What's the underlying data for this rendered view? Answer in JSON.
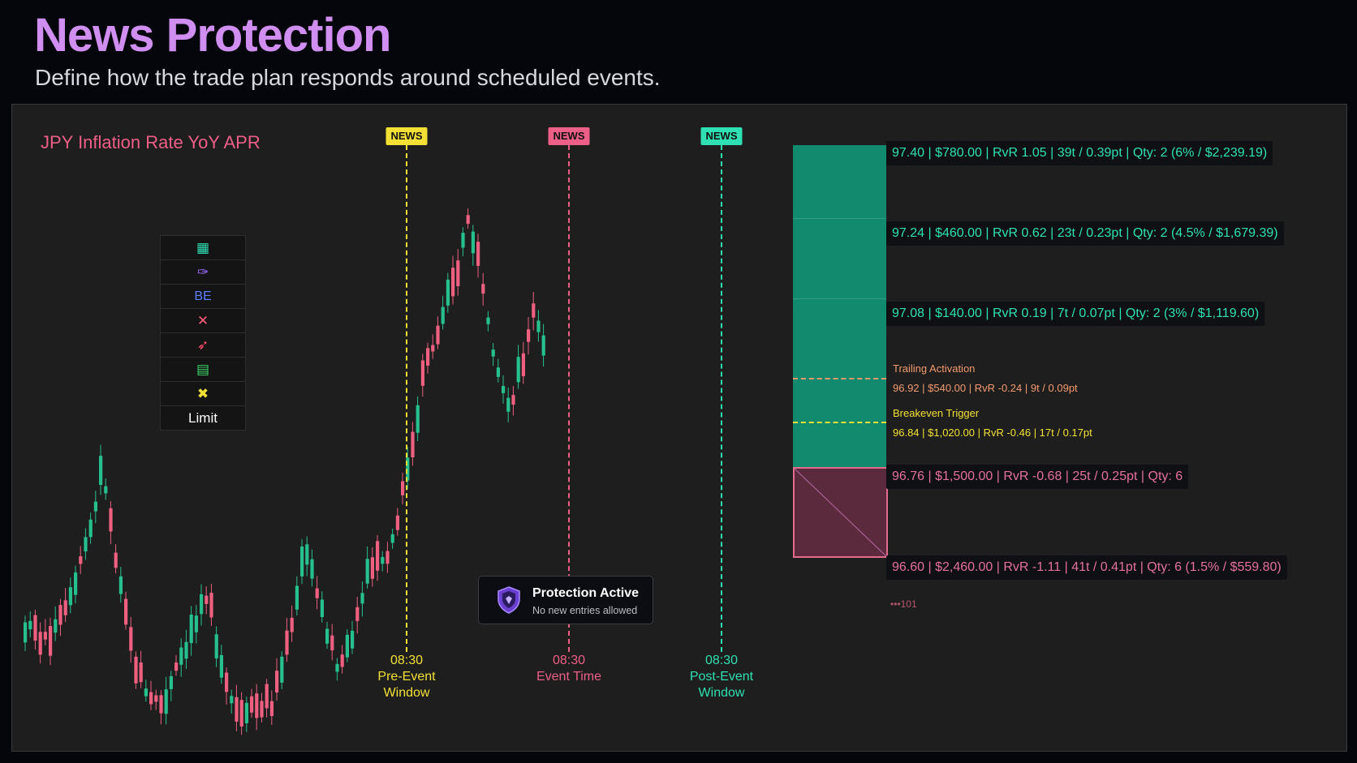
{
  "header": {
    "title": "News Protection",
    "subtitle": "Define how the trade plan responds around scheduled events."
  },
  "chart": {
    "event_name": "JPY  Inflation Rate YoY APR",
    "markers": [
      {
        "tag": "NEWS",
        "time": "08:30",
        "label_line1": "Pre-Event",
        "label_line2": "Window",
        "color": "#f3e036"
      },
      {
        "tag": "NEWS",
        "time": "08:30",
        "label_line1": "Event Time",
        "label_line2": "",
        "color": "#ee5f87"
      },
      {
        "tag": "NEWS",
        "time": "08:30",
        "label_line1": "Post-Event",
        "label_line2": "Window",
        "color": "#2ee0b2"
      }
    ]
  },
  "toolbar": {
    "items": [
      {
        "name": "calculator-icon",
        "glyph": "▦",
        "color": "#2ee0b2"
      },
      {
        "name": "pin-icon",
        "glyph": "✑",
        "color": "#9b6dff"
      },
      {
        "name": "breakeven-button",
        "glyph": "BE",
        "color": "#5a7fff"
      },
      {
        "name": "close-icon",
        "glyph": "✕",
        "color": "#ff5a7a"
      },
      {
        "name": "rocket-icon",
        "glyph": "➶",
        "color": "#ff4e6a"
      },
      {
        "name": "wallet-icon",
        "glyph": "▤",
        "color": "#3ed36a"
      },
      {
        "name": "tools-icon",
        "glyph": "✖",
        "color": "#f3e036"
      }
    ],
    "limit_label": "Limit"
  },
  "protection": {
    "title": "Protection Active",
    "subtitle": "No new entries allowed"
  },
  "levels": {
    "tp3": "97.40 | $780.00 | RvR 1.05 | 39t / 0.39pt | Qty: 2 (6% / $2,239.19)",
    "tp2": "97.24 | $460.00 | RvR 0.62 | 23t / 0.23pt | Qty: 2 (4.5% / $1,679.39)",
    "tp1": "97.08 | $140.00 | RvR 0.19 | 7t / 0.07pt | Qty: 2 (3% / $1,119.60)",
    "trailing_title": "Trailing Activation",
    "trailing_value": "96.92 | $540.00 | RvR -0.24 | 9t / 0.09pt",
    "breakeven_title": "Breakeven Trigger",
    "breakeven_value": "96.84 | $1,020.00 | RvR -0.46 | 17t / 0.17pt",
    "entry": "96.76 | $1,500.00 | RvR -0.68 | 25t / 0.25pt | Qty: 6",
    "stop": "96.60 | $2,460.00 | RvR -1.11 | 41t / 0.41pt | Qty: 6 (1.5% / $559.80)",
    "more": "•••101"
  },
  "colors": {
    "bull": "#26c08f",
    "bear": "#ee5f80",
    "take_profit_zone": "#128a6e",
    "stop_zone": "#5b2a3c"
  }
}
